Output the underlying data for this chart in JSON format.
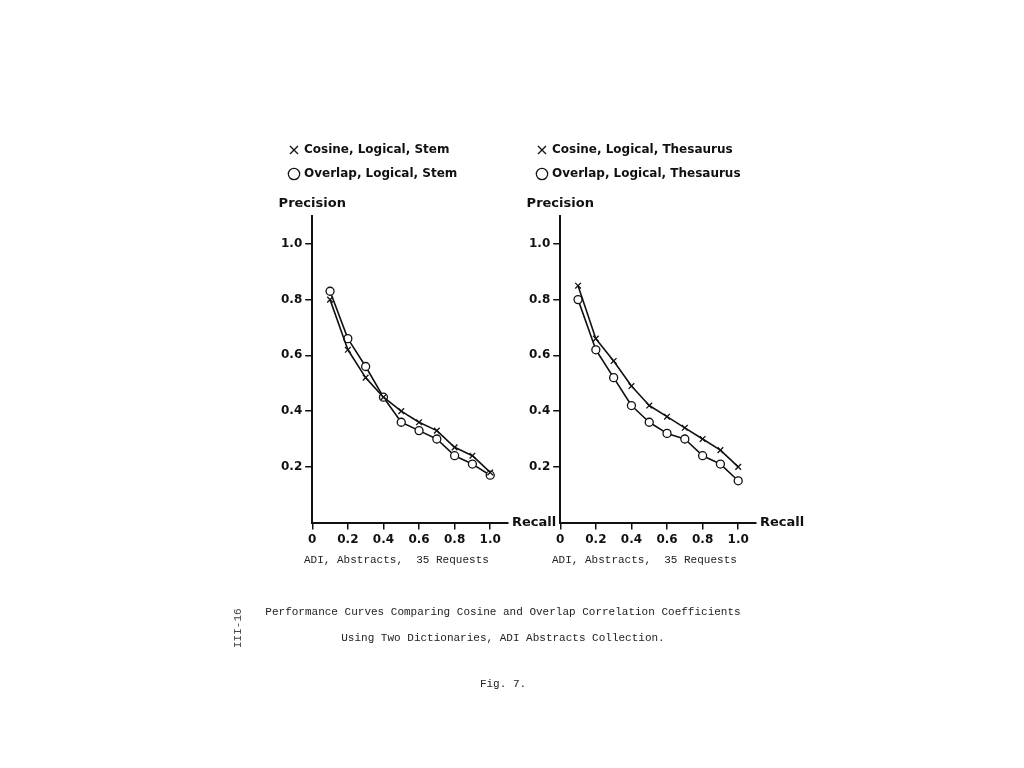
{
  "chart_data": [
    {
      "type": "line",
      "xlabel": "Recall",
      "ylabel": "Precision",
      "x": [
        0.1,
        0.2,
        0.3,
        0.4,
        0.5,
        0.6,
        0.7,
        0.8,
        0.9,
        1.0
      ],
      "series": [
        {
          "name": "Overlap, Logical, Stem",
          "color": "#111111",
          "marker": "circle",
          "values": [
            0.83,
            0.66,
            0.56,
            0.45,
            0.36,
            0.33,
            0.3,
            0.24,
            0.21,
            0.17
          ]
        },
        {
          "name": "Cosine, Logical, Stem",
          "color": "#111111",
          "marker": "cross",
          "values": [
            0.8,
            0.62,
            0.52,
            0.45,
            0.4,
            0.36,
            0.33,
            0.27,
            0.24,
            0.18
          ]
        }
      ],
      "xlim": [
        0,
        1.1
      ],
      "ylim": [
        0,
        1.1
      ],
      "xticks": [
        0,
        0.2,
        0.4,
        0.6,
        0.8,
        {
          "value": 1,
          "label": "1.0"
        }
      ],
      "yticks": [
        0.2,
        0.4,
        0.6,
        0.8,
        {
          "value": 1,
          "label": "1.0"
        }
      ],
      "grid": false,
      "legend": "top left",
      "line_style": "solid",
      "annotations": [
        "ADI, Abstracts,  35 Requests"
      ]
    },
    {
      "type": "line",
      "xlabel": "Recall",
      "ylabel": "Precision",
      "x": [
        0.1,
        0.2,
        0.3,
        0.4,
        0.5,
        0.6,
        0.7,
        0.8,
        0.9,
        1.0
      ],
      "series": [
        {
          "name": "Overlap, Logical, Thesaurus",
          "color": "#111111",
          "marker": "circle",
          "values": [
            0.8,
            0.62,
            0.52,
            0.42,
            0.36,
            0.32,
            0.3,
            0.24,
            0.21,
            0.15
          ]
        },
        {
          "name": "Cosine, Logical, Thesaurus",
          "color": "#111111",
          "marker": "cross",
          "values": [
            0.85,
            0.66,
            0.58,
            0.49,
            0.42,
            0.38,
            0.34,
            0.3,
            0.26,
            0.2
          ]
        }
      ],
      "xlim": [
        0,
        1.1
      ],
      "ylim": [
        0,
        1.1
      ],
      "xticks": [
        0,
        0.2,
        0.4,
        0.6,
        0.8,
        {
          "value": 1,
          "label": "1.0"
        }
      ],
      "yticks": [
        0.2,
        0.4,
        0.6,
        0.8,
        {
          "value": 1,
          "label": "1.0"
        }
      ],
      "grid": false,
      "legend": "top left",
      "line_style": "solid",
      "annotations": [
        "ADI, Abstracts,  35 Requests",
        "Performance Curves Comparing Cosine and Overlap Correlation Coefficients",
        "Using Two Dictionaries, ADI Abstracts Collection.",
        "Fig. 7.",
        "III-16"
      ]
    }
  ]
}
